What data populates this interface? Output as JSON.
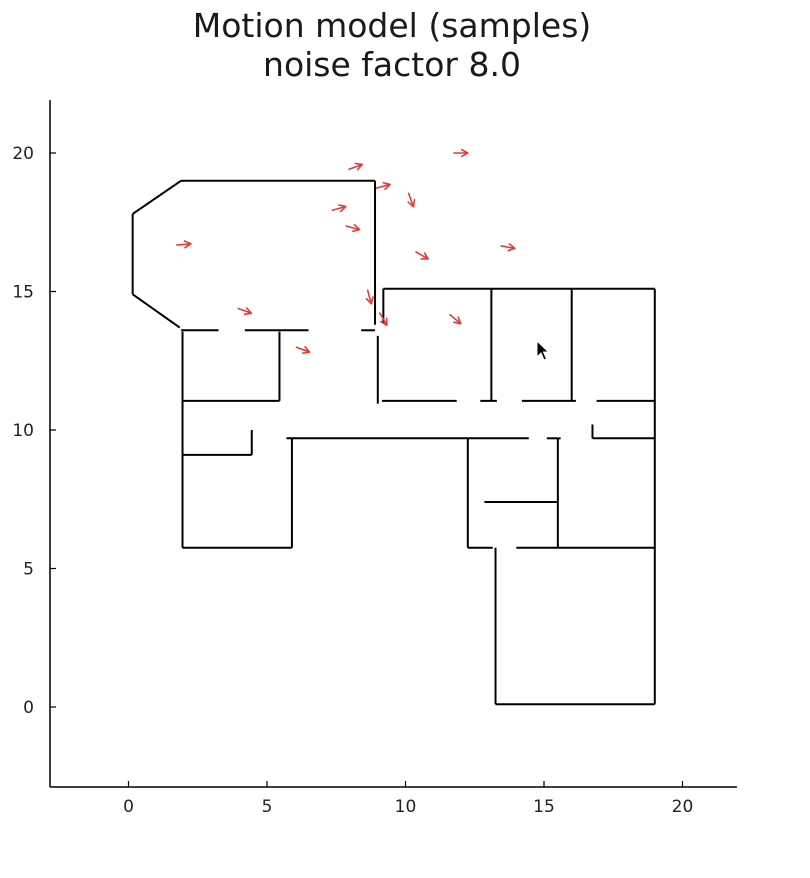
{
  "chart_data": {
    "type": "line",
    "title": [
      "Motion model (samples)",
      "noise factor 8.0"
    ],
    "xlabel": "",
    "ylabel": "",
    "xlim": [
      -2.8,
      22
    ],
    "ylim": [
      -2.8,
      22
    ],
    "xticks": [
      0,
      5,
      10,
      15,
      20
    ],
    "yticks": [
      0,
      5,
      10,
      15,
      20
    ],
    "grid": false,
    "colors": {
      "walls": "#000000",
      "samples": "#e03c3c"
    },
    "series": [
      {
        "kind": "walls",
        "segments": [
          [
            [
              1.85,
              13.7
            ],
            [
              0.15,
              14.9
            ]
          ],
          [
            [
              0.15,
              14.9
            ],
            [
              0.15,
              17.8
            ]
          ],
          [
            [
              0.15,
              17.8
            ],
            [
              1.9,
              19.0
            ]
          ],
          [
            [
              1.9,
              19.0
            ],
            [
              8.9,
              19.0
            ]
          ],
          [
            [
              8.9,
              19.0
            ],
            [
              8.9,
              13.8
            ]
          ],
          [
            [
              1.9,
              13.6
            ],
            [
              3.25,
              13.6
            ]
          ],
          [
            [
              4.2,
              13.6
            ],
            [
              6.5,
              13.6
            ]
          ],
          [
            [
              8.4,
              13.6
            ],
            [
              8.9,
              13.6
            ]
          ],
          [
            [
              9.2,
              15.1
            ],
            [
              19.0,
              15.1
            ]
          ],
          [
            [
              9.2,
              15.1
            ],
            [
              9.2,
              13.85
            ]
          ],
          [
            [
              9.0,
              13.4
            ],
            [
              9.0,
              10.95
            ]
          ],
          [
            [
              1.95,
              13.55
            ],
            [
              1.95,
              5.75
            ]
          ],
          [
            [
              5.45,
              13.55
            ],
            [
              5.45,
              11.05
            ]
          ],
          [
            [
              1.95,
              11.05
            ],
            [
              5.45,
              11.05
            ]
          ],
          [
            [
              9.15,
              11.05
            ],
            [
              11.85,
              11.05
            ]
          ],
          [
            [
              12.7,
              11.05
            ],
            [
              13.3,
              11.05
            ]
          ],
          [
            [
              13.1,
              15.1
            ],
            [
              13.1,
              11.05
            ]
          ],
          [
            [
              14.2,
              11.05
            ],
            [
              16.15,
              11.05
            ]
          ],
          [
            [
              16.0,
              15.1
            ],
            [
              16.0,
              11.05
            ]
          ],
          [
            [
              16.9,
              11.05
            ],
            [
              19.0,
              11.05
            ]
          ],
          [
            [
              19.0,
              15.1
            ],
            [
              19.0,
              0.1
            ]
          ],
          [
            [
              1.95,
              9.1
            ],
            [
              4.45,
              9.1
            ]
          ],
          [
            [
              4.45,
              9.1
            ],
            [
              4.45,
              10.0
            ]
          ],
          [
            [
              5.7,
              9.7
            ],
            [
              14.45,
              9.7
            ]
          ],
          [
            [
              15.1,
              9.7
            ],
            [
              15.6,
              9.7
            ]
          ],
          [
            [
              16.75,
              9.7
            ],
            [
              19.0,
              9.7
            ]
          ],
          [
            [
              16.75,
              9.7
            ],
            [
              16.75,
              10.2
            ]
          ],
          [
            [
              5.9,
              9.7
            ],
            [
              5.9,
              5.75
            ]
          ],
          [
            [
              1.95,
              5.75
            ],
            [
              5.9,
              5.75
            ]
          ],
          [
            [
              12.25,
              9.7
            ],
            [
              12.25,
              5.75
            ]
          ],
          [
            [
              12.25,
              5.75
            ],
            [
              13.15,
              5.75
            ]
          ],
          [
            [
              13.25,
              5.75
            ],
            [
              13.25,
              0.1
            ]
          ],
          [
            [
              13.25,
              0.1
            ],
            [
              19.0,
              0.1
            ]
          ],
          [
            [
              14.0,
              5.75
            ],
            [
              19.0,
              5.75
            ]
          ],
          [
            [
              15.5,
              9.7
            ],
            [
              15.5,
              5.75
            ]
          ],
          [
            [
              12.85,
              7.4
            ],
            [
              15.5,
              7.4
            ]
          ]
        ]
      },
      {
        "kind": "samples",
        "name": "",
        "points": [
          {
            "x": 12.0,
            "y": 20.0,
            "heading": 0
          },
          {
            "x": 8.2,
            "y": 19.5,
            "heading": 20
          },
          {
            "x": 9.2,
            "y": 18.8,
            "heading": 15
          },
          {
            "x": 10.2,
            "y": 18.3,
            "heading": -70
          },
          {
            "x": 7.6,
            "y": 18.0,
            "heading": 15
          },
          {
            "x": 8.1,
            "y": 17.3,
            "heading": -15
          },
          {
            "x": 2.0,
            "y": 16.7,
            "heading": 5
          },
          {
            "x": 10.6,
            "y": 16.3,
            "heading": -30
          },
          {
            "x": 13.7,
            "y": 16.6,
            "heading": -10
          },
          {
            "x": 8.7,
            "y": 14.8,
            "heading": -75
          },
          {
            "x": 4.2,
            "y": 14.3,
            "heading": -20
          },
          {
            "x": 9.2,
            "y": 14.0,
            "heading": -60
          },
          {
            "x": 11.8,
            "y": 14.0,
            "heading": -40
          },
          {
            "x": 6.3,
            "y": 12.9,
            "heading": -20
          }
        ]
      }
    ]
  },
  "cursor": {
    "icon": "mouse-pointer-icon"
  }
}
